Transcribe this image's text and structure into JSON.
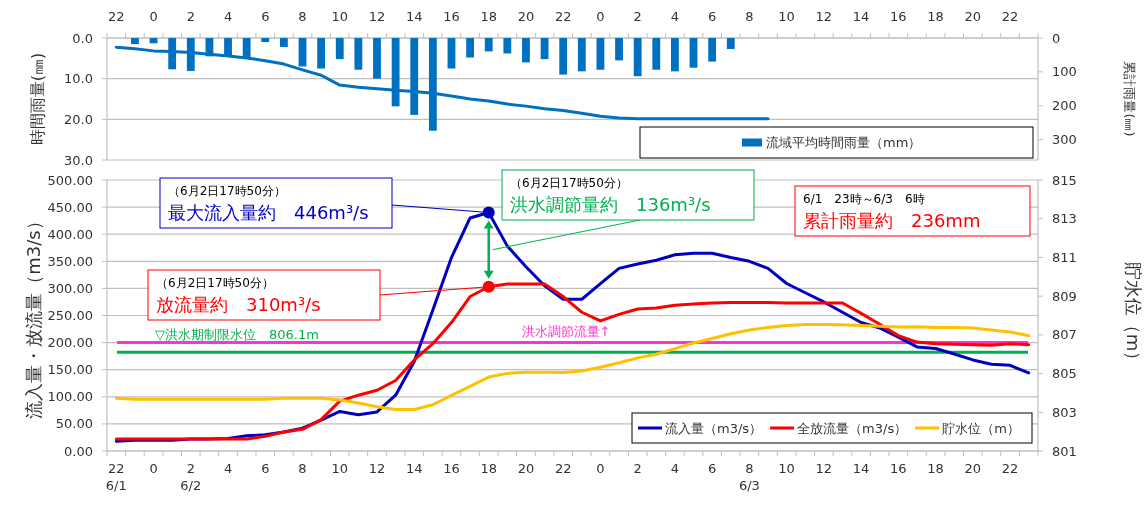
{
  "chart_data": [
    {
      "type": "bar",
      "ylabel": "時間雨量(㎜)",
      "y2label": "累計雨量(㎜)",
      "categories": [
        "22",
        null,
        "0",
        null,
        "2",
        null,
        "4",
        null,
        "6",
        null,
        "8",
        null,
        "10",
        null,
        "12",
        null,
        "14",
        null,
        "16",
        null,
        "18",
        null,
        "20",
        null,
        "22",
        null,
        "0",
        null,
        "2",
        null,
        "4",
        null,
        "6",
        null,
        "8",
        null,
        "10",
        null,
        "12",
        null,
        "14",
        null,
        "16",
        null,
        "18",
        null,
        "20",
        null,
        "22",
        null
      ],
      "ylim": [
        30,
        0
      ],
      "yticks": [
        {
          "value": 0,
          "label": "0.0"
        },
        {
          "value": 10,
          "label": "10.0"
        },
        {
          "value": 20,
          "label": "20.0"
        },
        {
          "value": 30,
          "label": "30.0"
        }
      ],
      "y2lim": [
        360,
        0
      ],
      "y2ticks": [
        0,
        100,
        200,
        300
      ],
      "grid": "y",
      "legend": "bottom right",
      "series": [
        {
          "name": "流域平均時間雨量（mm）",
          "color": "#0070c0",
          "values": [
            null,
            1.5,
            1.3,
            7.7,
            8.1,
            4.5,
            4.3,
            4.8,
            1.0,
            2.2,
            7.0,
            7.5,
            5.2,
            7.8,
            10.0,
            16.8,
            18.9,
            22.8,
            7.5,
            4.8,
            3.3,
            3.8,
            6.0,
            5.2,
            9.0,
            8.2,
            7.8,
            5.5,
            9.4,
            7.8,
            8.2,
            7.3,
            5.8,
            2.7,
            null,
            null,
            null,
            null,
            null,
            null,
            null,
            null,
            null,
            null,
            null,
            null,
            null,
            null,
            null,
            null
          ]
        },
        {
          "type": "line",
          "axis": "y2",
          "color": "#0070c0",
          "values": [
            27,
            32,
            38,
            40,
            43,
            48,
            53,
            59,
            67,
            77,
            94,
            110,
            139,
            145,
            150,
            154,
            158,
            163,
            171,
            180,
            186,
            195,
            201,
            209,
            214,
            222,
            231,
            236,
            238,
            238,
            238,
            238,
            238,
            238,
            238,
            238,
            null,
            null,
            null,
            null,
            null,
            null,
            null,
            null,
            null,
            null,
            null,
            null,
            null,
            null
          ]
        }
      ]
    },
    {
      "type": "line",
      "ylabel": "流入量・放流量（m3/s）",
      "y2label": "貯水位（m）",
      "categories": [
        "22\n6/1",
        null,
        "0",
        null,
        "2\n6/2",
        null,
        "4",
        null,
        "6",
        null,
        "8",
        null,
        "10",
        null,
        "12",
        null,
        "14",
        null,
        "16",
        null,
        "18",
        null,
        "20",
        null,
        "22",
        null,
        "0",
        null,
        "2",
        null,
        "4",
        null,
        "6",
        null,
        "8\n6/3",
        null,
        "10",
        null,
        "12",
        null,
        "14",
        null,
        "16",
        null,
        "18",
        null,
        "20",
        null,
        "22",
        null
      ],
      "ylim": [
        0,
        500
      ],
      "yticks": [
        {
          "value": 0,
          "label": "0.00"
        },
        {
          "value": 50,
          "label": "50.00"
        },
        {
          "value": 100,
          "label": "100.00"
        },
        {
          "value": 150,
          "label": "150.00"
        },
        {
          "value": 200,
          "label": "200.00"
        },
        {
          "value": 250,
          "label": "250.00"
        },
        {
          "value": 300,
          "label": "300.00"
        },
        {
          "value": 350,
          "label": "350.00"
        },
        {
          "value": 400,
          "label": "400.00"
        },
        {
          "value": 450,
          "label": "450.00"
        },
        {
          "value": 500,
          "label": "500.00"
        }
      ],
      "y2lim": [
        801,
        815
      ],
      "y2ticks": [
        801,
        803,
        805,
        807,
        809,
        811,
        813,
        815
      ],
      "grid": "y",
      "legend": "bottom right",
      "series": [
        {
          "name": "流入量（m3/s）",
          "color": "#0000c0",
          "values": [
            18,
            20,
            20,
            20,
            22,
            22,
            23,
            28,
            30,
            35,
            42,
            57,
            73,
            67,
            72,
            103,
            165,
            260,
            357,
            430,
            440,
            378,
            340,
            305,
            280,
            280,
            309,
            337,
            345,
            352,
            362,
            365,
            365,
            357,
            350,
            337,
            309,
            292,
            275,
            256,
            237,
            227,
            210,
            192,
            189,
            179,
            168,
            160,
            158,
            144
          ]
        },
        {
          "name": "全放流量（m3/s）",
          "color": "#ff0000",
          "values": [
            22,
            22,
            22,
            22,
            22,
            22,
            22,
            22,
            27,
            35,
            40,
            58,
            92,
            103,
            112,
            130,
            168,
            198,
            237,
            285,
            303,
            308,
            308,
            308,
            285,
            256,
            240,
            252,
            262,
            264,
            269,
            271,
            273,
            274,
            274,
            274,
            273,
            273,
            273,
            273,
            254,
            234,
            213,
            201,
            198,
            197,
            196,
            195,
            198,
            196
          ]
        },
        {
          "name": "貯水位（m）",
          "axis": "y2",
          "color": "#ffc000",
          "values": [
            803.73,
            803.67,
            803.67,
            803.67,
            803.67,
            803.67,
            803.67,
            803.67,
            803.67,
            803.73,
            803.73,
            803.73,
            803.64,
            803.48,
            803.29,
            803.14,
            803.14,
            803.39,
            803.87,
            804.34,
            804.82,
            805.01,
            805.07,
            805.07,
            805.05,
            805.13,
            805.33,
            805.56,
            805.81,
            806.0,
            806.29,
            806.58,
            806.81,
            807.06,
            807.25,
            807.38,
            807.48,
            807.54,
            807.54,
            807.52,
            807.48,
            807.44,
            807.4,
            807.42,
            807.38,
            807.38,
            807.35,
            807.25,
            807.15,
            806.96
          ]
        }
      ],
      "ref_lines": [
        {
          "axis": "y",
          "value": 200,
          "label": "洪水調節流量↑",
          "color": "#ff33cc"
        },
        {
          "axis": "y2",
          "value": 806.1,
          "label": "▽洪水期制限水位　806.1m",
          "color": "#00b050"
        }
      ],
      "annotations": [
        "（6月2日17時50分）",
        "最大流入量約　446m³/s",
        "（6月2日17時50分）",
        "放流量約　310m³/s",
        "（6月2日17時50分）",
        "洪水調節量約　136m³/s",
        "6/1　23時～6/3　6時",
        "累計雨量約　236mm"
      ]
    }
  ]
}
